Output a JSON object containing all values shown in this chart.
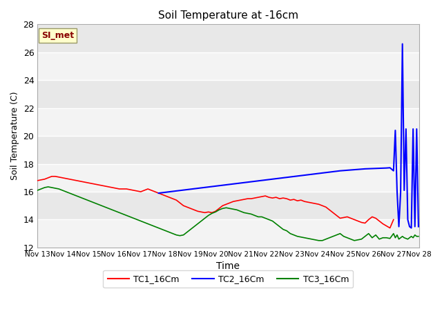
{
  "title": "Soil Temperature at -16cm",
  "xlabel": "Time",
  "ylabel": "Soil Temperature (C)",
  "ylim": [
    12,
    28
  ],
  "yticks": [
    12,
    14,
    16,
    18,
    20,
    22,
    24,
    26,
    28
  ],
  "bg_color": "#e8e8e8",
  "annotation_text": "SI_met",
  "annotation_bg": "#ffffcc",
  "annotation_border": "#999966",
  "annotation_text_color": "#880000",
  "legend_labels": [
    "TC1_16Cm",
    "TC2_16Cm",
    "TC3_16Cm"
  ],
  "legend_colors": [
    "red",
    "blue",
    "green"
  ],
  "x_tick_labels": [
    "Nov 13",
    "Nov 14",
    "Nov 15",
    "Nov 16",
    "Nov 17",
    "Nov 18",
    "Nov 19",
    "Nov 20",
    "Nov 21",
    "Nov 22",
    "Nov 23",
    "Nov 24",
    "Nov 25",
    "Nov 26",
    "Nov 27",
    "Nov 28"
  ],
  "TC1_x": [
    0,
    0.14,
    0.28,
    0.42,
    0.56,
    0.7,
    0.84,
    0.98,
    1.12,
    1.26,
    1.4,
    1.54,
    1.68,
    1.82,
    1.96,
    2.1,
    2.24,
    2.38,
    2.52,
    2.66,
    2.8,
    2.94,
    3.08,
    3.22,
    3.36,
    3.5,
    3.64,
    3.78,
    3.92,
    4.06,
    4.2,
    4.34,
    4.48,
    4.62,
    4.76,
    4.9,
    5.04,
    5.18,
    5.32,
    5.46,
    5.6,
    5.74,
    5.88,
    6.02,
    6.16,
    6.3,
    6.44,
    6.58,
    6.72,
    6.86,
    7.0,
    7.14,
    7.28,
    7.42,
    7.56,
    7.7,
    7.84,
    7.98,
    8.12,
    8.26,
    8.4,
    8.54,
    8.68,
    8.82,
    8.96,
    9.1,
    9.24,
    9.38,
    9.52,
    9.66,
    9.8,
    9.94,
    10.08,
    10.22,
    10.36,
    10.5,
    10.64,
    10.78,
    10.92,
    11.06,
    11.2,
    11.34,
    11.48,
    11.62,
    11.76,
    11.9,
    12.04,
    12.18,
    12.32,
    12.46,
    12.6,
    12.74,
    12.88,
    13.02,
    13.16,
    13.3,
    13.44,
    13.58,
    13.72,
    13.86,
    14.0
  ],
  "TC1_y": [
    16.8,
    16.85,
    16.9,
    17.0,
    17.1,
    17.1,
    17.05,
    17.0,
    16.95,
    16.9,
    16.85,
    16.8,
    16.75,
    16.7,
    16.65,
    16.6,
    16.55,
    16.5,
    16.45,
    16.4,
    16.35,
    16.3,
    16.25,
    16.2,
    16.2,
    16.2,
    16.15,
    16.1,
    16.05,
    16.0,
    16.1,
    16.2,
    16.1,
    16.0,
    15.9,
    15.8,
    15.7,
    15.6,
    15.5,
    15.4,
    15.2,
    15.0,
    14.9,
    14.8,
    14.7,
    14.6,
    14.55,
    14.5,
    14.55,
    14.5,
    14.6,
    14.8,
    15.0,
    15.1,
    15.2,
    15.3,
    15.35,
    15.4,
    15.45,
    15.5,
    15.5,
    15.55,
    15.6,
    15.65,
    15.7,
    15.6,
    15.55,
    15.6,
    15.5,
    15.55,
    15.5,
    15.4,
    15.45,
    15.35,
    15.4,
    15.3,
    15.25,
    15.2,
    15.15,
    15.1,
    15.0,
    14.9,
    14.7,
    14.5,
    14.3,
    14.1,
    14.15,
    14.2,
    14.1,
    14.0,
    13.9,
    13.8,
    13.75,
    14.0,
    14.2,
    14.1,
    13.9,
    13.7,
    13.55,
    13.4,
    14.0
  ],
  "TC2_x": [
    4.76,
    11.9,
    12.04,
    12.18,
    12.32,
    12.46,
    12.6,
    12.74,
    12.88,
    13.02,
    13.16,
    13.3,
    13.44,
    13.58,
    13.72,
    13.86,
    14.0,
    14.07,
    14.14,
    14.21,
    14.28,
    14.35,
    14.42,
    14.49,
    14.56,
    14.63,
    14.7,
    14.77,
    14.84,
    14.91,
    14.98
  ],
  "TC2_y": [
    15.9,
    17.5,
    17.52,
    17.54,
    17.56,
    17.58,
    17.6,
    17.62,
    17.64,
    17.65,
    17.66,
    17.67,
    17.68,
    17.69,
    17.7,
    17.72,
    17.5,
    20.4,
    16.0,
    13.5,
    16.0,
    26.6,
    16.1,
    20.5,
    14.0,
    13.5,
    13.4,
    20.5,
    13.5,
    20.5,
    13.5
  ],
  "TC3_x": [
    0,
    0.14,
    0.28,
    0.42,
    0.56,
    0.7,
    0.84,
    0.98,
    1.12,
    1.26,
    1.4,
    1.54,
    1.68,
    1.82,
    1.96,
    2.1,
    2.24,
    2.38,
    2.52,
    2.66,
    2.8,
    2.94,
    3.08,
    3.22,
    3.36,
    3.5,
    3.64,
    3.78,
    3.92,
    4.06,
    4.2,
    4.34,
    4.48,
    4.62,
    4.76,
    4.9,
    5.04,
    5.18,
    5.32,
    5.46,
    5.6,
    5.74,
    5.88,
    6.02,
    6.16,
    6.3,
    6.44,
    6.58,
    6.72,
    6.86,
    7.0,
    7.14,
    7.28,
    7.42,
    7.56,
    7.7,
    7.84,
    7.98,
    8.12,
    8.26,
    8.4,
    8.54,
    8.68,
    8.82,
    8.96,
    9.1,
    9.24,
    9.38,
    9.52,
    9.66,
    9.8,
    9.94,
    10.08,
    10.22,
    10.36,
    10.5,
    10.64,
    10.78,
    10.92,
    11.06,
    11.2,
    11.34,
    11.48,
    11.62,
    11.76,
    11.9,
    12.04,
    12.18,
    12.32,
    12.46,
    12.6,
    12.74,
    12.88,
    13.02,
    13.16,
    13.3,
    13.44,
    13.58,
    13.72,
    13.86,
    14.0,
    14.07,
    14.14,
    14.21,
    14.28,
    14.35,
    14.42,
    14.49,
    14.56,
    14.63,
    14.7,
    14.77,
    14.84,
    14.91,
    14.98
  ],
  "TC3_y": [
    16.1,
    16.2,
    16.3,
    16.35,
    16.3,
    16.25,
    16.2,
    16.1,
    16.0,
    15.9,
    15.8,
    15.7,
    15.6,
    15.5,
    15.4,
    15.3,
    15.2,
    15.1,
    15.0,
    14.9,
    14.8,
    14.7,
    14.6,
    14.5,
    14.4,
    14.3,
    14.2,
    14.1,
    14.0,
    13.9,
    13.8,
    13.7,
    13.6,
    13.5,
    13.4,
    13.3,
    13.2,
    13.1,
    13.0,
    12.9,
    12.85,
    12.9,
    13.1,
    13.3,
    13.5,
    13.7,
    13.9,
    14.1,
    14.3,
    14.45,
    14.55,
    14.7,
    14.8,
    14.85,
    14.8,
    14.75,
    14.7,
    14.6,
    14.5,
    14.45,
    14.4,
    14.3,
    14.2,
    14.2,
    14.1,
    14.0,
    13.9,
    13.7,
    13.5,
    13.3,
    13.2,
    13.0,
    12.9,
    12.8,
    12.75,
    12.7,
    12.65,
    12.6,
    12.55,
    12.5,
    12.5,
    12.6,
    12.7,
    12.8,
    12.9,
    13.0,
    12.8,
    12.7,
    12.6,
    12.5,
    12.55,
    12.6,
    12.8,
    13.0,
    12.7,
    12.9,
    12.6,
    12.7,
    12.7,
    12.65,
    13.0,
    12.7,
    12.9,
    12.6,
    12.7,
    12.8,
    12.7,
    12.65,
    12.6,
    12.7,
    12.8,
    12.7,
    12.9,
    12.8,
    12.8
  ]
}
